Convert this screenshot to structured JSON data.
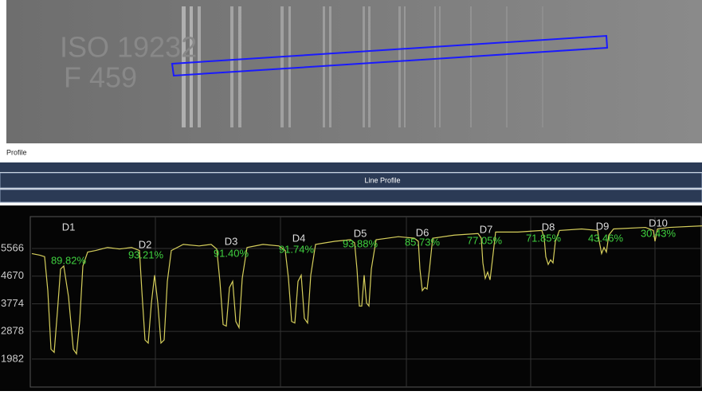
{
  "image": {
    "text_lines": [
      "ISO 19232",
      "F 459"
    ]
  },
  "panel": {
    "label": "Profile",
    "header": "Line Profile"
  },
  "chart_data": {
    "type": "line",
    "x": [
      0,
      10,
      16,
      20,
      24,
      28,
      32,
      36,
      40,
      46,
      52,
      56,
      60,
      64,
      70,
      80,
      95,
      110,
      125,
      135,
      138,
      142,
      146,
      150,
      154,
      158,
      162,
      166,
      170,
      175,
      190,
      210,
      225,
      232,
      236,
      240,
      244,
      248,
      252,
      256,
      260,
      264,
      270,
      290,
      310,
      318,
      322,
      326,
      330,
      334,
      338,
      342,
      346,
      350,
      356,
      380,
      400,
      405,
      408,
      411,
      414,
      417,
      420,
      423,
      426,
      432,
      460,
      480,
      485,
      487,
      490,
      493,
      496,
      499,
      503,
      530,
      560,
      564,
      566,
      569,
      572,
      575,
      578,
      582,
      610,
      640,
      643,
      645,
      648,
      651,
      654,
      657,
      662,
      690,
      710,
      712,
      715,
      718,
      721,
      724,
      730,
      770,
      780,
      782,
      785,
      800,
      841
    ],
    "series": [
      {
        "color": "#d6cf5c",
        "values": [
          5400,
          5350,
          5300,
          4200,
          2300,
          2200,
          3500,
          4900,
          5000,
          4000,
          2300,
          2150,
          3200,
          5000,
          5450,
          5500,
          5600,
          5550,
          5600,
          5500,
          4200,
          2600,
          2500,
          3800,
          4700,
          3800,
          2500,
          2600,
          4500,
          5500,
          5700,
          5650,
          5700,
          5550,
          4500,
          3100,
          3050,
          4300,
          4500,
          3200,
          3000,
          4600,
          5600,
          5700,
          5650,
          5500,
          4600,
          3200,
          3150,
          4500,
          4700,
          3300,
          3150,
          4700,
          5700,
          5800,
          5850,
          5750,
          4900,
          3700,
          3700,
          4700,
          3800,
          3700,
          4900,
          5850,
          5950,
          5900,
          5800,
          4900,
          4200,
          4300,
          4250,
          4900,
          5900,
          6000,
          6050,
          5900,
          5100,
          4600,
          4800,
          4550,
          5200,
          6100,
          6100,
          6150,
          5900,
          5300,
          5050,
          5200,
          5100,
          5800,
          6150,
          6200,
          6150,
          5800,
          5400,
          5600,
          5450,
          6000,
          6200,
          6250,
          6150,
          5800,
          6200,
          6250,
          6300
        ]
      }
    ],
    "xlim": [
      0,
      841
    ],
    "ylim": [
      1100,
      6600
    ],
    "yticks": [
      5566,
      4670,
      3774,
      2878,
      1982
    ],
    "grid": true,
    "annotations": [
      {
        "label": "D1",
        "value_label": "89.82%"
      },
      {
        "label": "D2",
        "value_label": "93.21%"
      },
      {
        "label": "D3",
        "value_label": "91.40%"
      },
      {
        "label": "D4",
        "value_label": "91.74%"
      },
      {
        "label": "D5",
        "value_label": "93.88%"
      },
      {
        "label": "D6",
        "value_label": "85.73%"
      },
      {
        "label": "D7",
        "value_label": "77.05%"
      },
      {
        "label": "D8",
        "value_label": "71.85%"
      },
      {
        "label": "D9",
        "value_label": "43.46%"
      },
      {
        "label": "D10",
        "value_label": "30.43%"
      }
    ]
  }
}
